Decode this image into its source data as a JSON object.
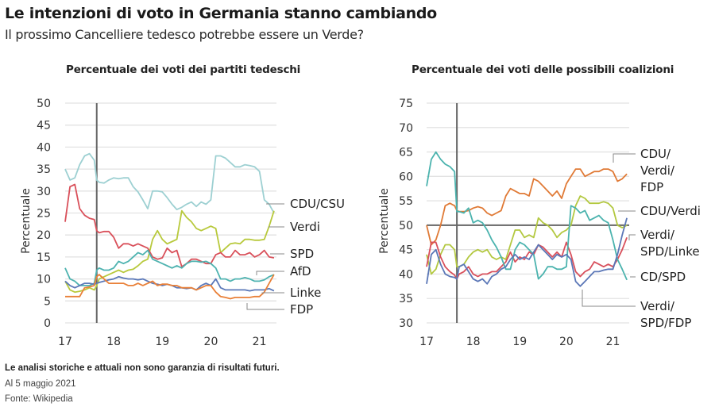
{
  "header": {
    "title": "Le intenzioni di voto in Germania stanno cambiando",
    "subtitle": "Il prossimo Cancelliere tedesco potrebbe essere un Verde?"
  },
  "footer": {
    "disclaimer": "Le analisi storiche e attuali non sono garanzia di risultati futuri.",
    "date": "Al 5 maggio 2021",
    "source": "Fonte:  Wikipedia"
  },
  "chart_data": [
    {
      "type": "line",
      "title": "Percentuale dei voti dei partiti tedeschi",
      "xlabel": "",
      "ylabel": "Percentuale",
      "ylim": [
        0,
        50
      ],
      "xlim": [
        17,
        21.35
      ],
      "yticks": [
        0,
        5,
        10,
        15,
        20,
        25,
        30,
        35,
        40,
        45,
        50
      ],
      "xticks": [
        17,
        18,
        19,
        20,
        21
      ],
      "xtick_labels": [
        "17",
        "18",
        "19",
        "20",
        "21"
      ],
      "grid": true,
      "legend": "right (inline labels)",
      "reference_line_x": 17.65,
      "x": [
        17.0,
        17.1,
        17.2,
        17.3,
        17.4,
        17.5,
        17.6,
        17.65,
        17.7,
        17.8,
        17.9,
        18.0,
        18.1,
        18.2,
        18.3,
        18.4,
        18.5,
        18.6,
        18.7,
        18.8,
        18.9,
        19.0,
        19.1,
        19.2,
        19.3,
        19.4,
        19.5,
        19.6,
        19.7,
        19.8,
        19.9,
        20.0,
        20.1,
        20.2,
        20.3,
        20.4,
        20.5,
        20.6,
        20.7,
        20.8,
        20.9,
        21.0,
        21.1,
        21.2,
        21.3
      ],
      "series": [
        {
          "name": "CDU/CSU",
          "color": "#9dd0d2",
          "values": [
            35,
            32.5,
            33,
            36,
            38,
            38.5,
            37,
            32.5,
            32,
            31.8,
            32.5,
            33,
            32.8,
            33,
            33,
            31,
            29.8,
            28,
            26,
            30,
            30,
            29.8,
            28.5,
            27,
            25.8,
            26.3,
            27,
            27.5,
            26.5,
            27.5,
            27,
            28,
            38,
            38,
            37.5,
            36.5,
            35.5,
            35.5,
            36,
            35.8,
            35.5,
            34.5,
            28,
            27,
            25
          ]
        },
        {
          "name": "Verdi",
          "color": "#b8c93c",
          "values": [
            9.5,
            7.5,
            7,
            7.2,
            7.5,
            8,
            7.5,
            8.5,
            10,
            10.5,
            11,
            11.5,
            12,
            11.5,
            12,
            12.2,
            13,
            14,
            14.5,
            19,
            21,
            19,
            18,
            18.5,
            19,
            25.5,
            24,
            23,
            21.5,
            21,
            21.5,
            22,
            21.5,
            16,
            17,
            18,
            18.2,
            18,
            19,
            19,
            18.8,
            18.8,
            19,
            22,
            25.5
          ]
        },
        {
          "name": "SPD",
          "color": "#d9505a",
          "values": [
            23,
            31,
            31.5,
            26,
            24.5,
            23.8,
            23.5,
            21,
            20.5,
            20.8,
            20.8,
            19.5,
            17,
            18,
            18,
            17.5,
            18,
            17.5,
            17,
            15,
            14.5,
            14.8,
            17,
            16,
            16.5,
            12.8,
            13.5,
            14.5,
            14.5,
            14,
            13.5,
            13.5,
            15.5,
            16,
            15,
            15,
            16.5,
            15.5,
            15.5,
            16,
            15,
            15.5,
            16.5,
            15,
            14.8
          ]
        },
        {
          "name": "AfD",
          "color": "#4eb3b0",
          "values": [
            12.5,
            10,
            9.5,
            8.5,
            8.5,
            8.5,
            9,
            12,
            12.5,
            12,
            12,
            12.5,
            14,
            13.5,
            14,
            15,
            16,
            15.5,
            16.5,
            14.5,
            14,
            13.5,
            13,
            12.5,
            13,
            12.5,
            13.5,
            14,
            14,
            13.8,
            14,
            13.5,
            12.5,
            10,
            10,
            9.5,
            10,
            10,
            10.3,
            10,
            9.5,
            9.5,
            9.8,
            10.5,
            11
          ]
        },
        {
          "name": "Linke",
          "color": "#5b78b8",
          "values": [
            9.5,
            8.5,
            8,
            8.5,
            9,
            9,
            8.8,
            9,
            9.2,
            9.5,
            9.8,
            10,
            10.5,
            10.2,
            10,
            10,
            9.8,
            10,
            9.5,
            9,
            8.8,
            8.5,
            8.8,
            8.5,
            8,
            8,
            7.8,
            8,
            7.5,
            8.5,
            9,
            8.5,
            10,
            8,
            7.5,
            7.5,
            7.5,
            7.5,
            7.5,
            7.3,
            7.5,
            7.5,
            7.5,
            7.8,
            7.3
          ]
        },
        {
          "name": "FDP",
          "color": "#e98038",
          "values": [
            6,
            6,
            6,
            6,
            8,
            8.2,
            8.5,
            10.5,
            11,
            10,
            9,
            9,
            9,
            9,
            8.5,
            8.5,
            9,
            8.5,
            9,
            9.5,
            8.5,
            8.8,
            8.8,
            8.5,
            8.5,
            8,
            8,
            8,
            7.5,
            8,
            8.5,
            8.5,
            7,
            6,
            5.8,
            5.5,
            5.8,
            5.8,
            5.8,
            5.8,
            6,
            6,
            7,
            9,
            11
          ]
        }
      ]
    },
    {
      "type": "line",
      "title": "Percentuale dei voti delle possibili coalizioni",
      "xlabel": "",
      "ylabel": "Percentuale",
      "ylim": [
        30,
        75
      ],
      "xlim": [
        17,
        21.35
      ],
      "yticks": [
        30,
        35,
        40,
        45,
        50,
        55,
        60,
        65,
        70,
        75
      ],
      "xticks": [
        17,
        18,
        19,
        20,
        21
      ],
      "xtick_labels": [
        "17",
        "18",
        "19",
        "20",
        "21"
      ],
      "grid": true,
      "legend": "right (inline labels)",
      "reference_line_x": 17.65,
      "reference_line_y": 50,
      "x": [
        17.0,
        17.1,
        17.2,
        17.3,
        17.4,
        17.5,
        17.6,
        17.65,
        17.7,
        17.8,
        17.9,
        18.0,
        18.1,
        18.2,
        18.3,
        18.4,
        18.5,
        18.6,
        18.7,
        18.8,
        18.9,
        19.0,
        19.1,
        19.2,
        19.3,
        19.4,
        19.5,
        19.6,
        19.7,
        19.8,
        19.9,
        20.0,
        20.1,
        20.2,
        20.3,
        20.4,
        20.5,
        20.6,
        20.7,
        20.8,
        20.9,
        21.0,
        21.1,
        21.2,
        21.3
      ],
      "series": [
        {
          "name": "CDU/Verdi/FDP",
          "label": "CDU/\nVerdi/\nFDP",
          "color": "#e07a36",
          "values": [
            50,
            46,
            47,
            50,
            54,
            54.5,
            54,
            53,
            52.8,
            52.8,
            53,
            53.5,
            53.8,
            53.5,
            52.5,
            52,
            52.5,
            53,
            56,
            57.5,
            57,
            56.5,
            56.5,
            56,
            59.5,
            59,
            58,
            57,
            56,
            57,
            55.5,
            58.5,
            60,
            61.5,
            61.5,
            60,
            60.5,
            61,
            61,
            61.5,
            61.5,
            61,
            59,
            59.5,
            60.5
          ]
        },
        {
          "name": "CDU/Verdi",
          "label": "CDU/Verdi",
          "color": "#b3c840",
          "values": [
            44,
            40,
            41,
            44,
            46,
            46,
            45,
            41.5,
            41.5,
            42,
            43.5,
            44.5,
            45,
            44.5,
            45,
            43.5,
            43,
            43.5,
            43,
            46,
            49,
            49,
            47.5,
            48,
            47.5,
            51.5,
            50.5,
            50,
            49,
            47.5,
            48.5,
            49,
            50,
            54,
            56,
            55.5,
            54.5,
            54.5,
            54.5,
            54.8,
            54.5,
            53.5,
            50,
            49.5,
            50
          ]
        },
        {
          "name": "Verdi/SPD/Linke",
          "label": "Verdi/\nSPD/Linke",
          "color": "#d8505c",
          "values": [
            41.5,
            46.5,
            46.5,
            43.5,
            41.5,
            40.5,
            39.8,
            39,
            40,
            40.5,
            41.5,
            40,
            39.5,
            40,
            40,
            40.5,
            40.5,
            41.5,
            42.5,
            44.5,
            42.5,
            43.5,
            43,
            44.5,
            44,
            46,
            45.5,
            44.5,
            43.5,
            44.5,
            43.5,
            46.5,
            44,
            40.5,
            39.5,
            40.5,
            41,
            42.5,
            42,
            41.5,
            42,
            41.5,
            43,
            45,
            47.5
          ]
        },
        {
          "name": "CD/SPD",
          "label": "CD/SPD",
          "color": "#4bb3ae",
          "values": [
            58,
            63.5,
            65,
            63.5,
            62.5,
            62,
            61,
            52.8,
            52.8,
            52.5,
            53.5,
            50.5,
            51,
            50.5,
            49,
            47,
            45.5,
            43.5,
            41,
            41,
            45,
            46.5,
            46,
            45,
            44,
            39,
            40,
            41.5,
            41.5,
            41,
            41,
            41.5,
            54,
            53.5,
            52.5,
            53,
            51,
            51.5,
            52,
            51,
            50.5,
            47,
            43,
            41,
            38.8
          ]
        },
        {
          "name": "Verdi/SPD/FDP",
          "label": "Verdi/\nSPD/FDP",
          "color": "#5b77b7",
          "values": [
            38,
            44,
            45,
            42,
            40,
            39.5,
            39.3,
            39,
            41.5,
            42,
            40.5,
            39,
            38.5,
            39,
            38,
            39.5,
            40,
            41,
            41.5,
            43,
            44,
            43,
            43.5,
            43,
            44.5,
            46,
            45,
            44,
            43,
            44,
            43.5,
            44,
            43,
            38.5,
            37.5,
            38.5,
            39.5,
            40.5,
            40.5,
            40.8,
            41,
            41,
            44,
            48,
            51.5
          ]
        }
      ]
    }
  ]
}
